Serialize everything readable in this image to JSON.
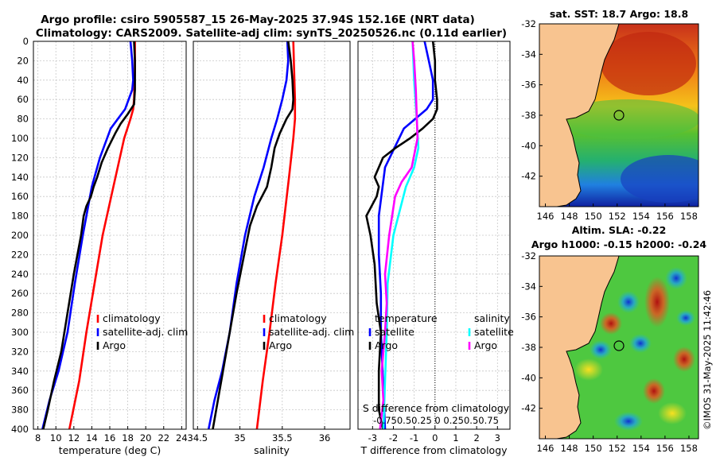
{
  "title_line1": "Argo profile: csiro 5905587_15 26-May-2025 37.94S 152.16E (NRT data)",
  "title_line2": "Climatology: CARS2009. Satellite-adj clim: synTS_20250526.nc (0.11d earlier)",
  "stamp": "©IMOS 31-May-2025 11:42:46",
  "colors": {
    "argo": "#000000",
    "climatology": "#ff0000",
    "satellite": "#0000ff",
    "sat_salinity": "#00ffff",
    "argo_salinity": "#ff00ff",
    "land": "#f8c490"
  },
  "chart_data": [
    {
      "type": "line",
      "name": "temperature",
      "xlabel": "temperature (deg C)",
      "xlim": [
        7.5,
        24.5
      ],
      "xticks": [
        8,
        10,
        12,
        14,
        16,
        18,
        20,
        22,
        24
      ],
      "ylim": [
        400,
        0
      ],
      "yticks": [
        0,
        20,
        40,
        60,
        80,
        100,
        120,
        140,
        160,
        180,
        200,
        220,
        240,
        260,
        280,
        300,
        320,
        340,
        360,
        380,
        400
      ],
      "legend": [
        "climatology",
        "satellite-adj. clim",
        "Argo"
      ],
      "series": [
        {
          "name": "climatology",
          "color": "#ff0000",
          "x": [
            18.8,
            18.8,
            18.7,
            18.6,
            18.3,
            17.6,
            16.4,
            15.2,
            14.3,
            13.4,
            12.6,
            11.5
          ],
          "y": [
            0,
            30,
            60,
            70,
            80,
            100,
            150,
            200,
            250,
            300,
            350,
            400
          ]
        },
        {
          "name": "satellite-adj. clim",
          "color": "#0000ff",
          "x": [
            18.3,
            18.5,
            18.6,
            18.5,
            17.7,
            16.1,
            14.9,
            14.0,
            13.0,
            12.1,
            11.3,
            10.3,
            9.3,
            8.5
          ],
          "y": [
            0,
            20,
            40,
            50,
            70,
            90,
            120,
            150,
            200,
            250,
            300,
            340,
            370,
            400
          ]
        },
        {
          "name": "Argo",
          "color": "#000000",
          "x": [
            18.7,
            18.8,
            18.8,
            18.7,
            18.0,
            17.2,
            16.6,
            15.8,
            15.1,
            14.6,
            14.2,
            13.9,
            13.4,
            13.1,
            12.8,
            12.0,
            11.3,
            10.6,
            9.8,
            9.1,
            8.6
          ],
          "y": [
            0,
            20,
            50,
            65,
            75,
            85,
            95,
            110,
            125,
            140,
            150,
            160,
            170,
            180,
            200,
            240,
            280,
            320,
            350,
            380,
            400
          ]
        }
      ]
    },
    {
      "type": "line",
      "name": "salinity",
      "xlabel": "salinity",
      "xlim": [
        34.45,
        36.3
      ],
      "xticks": [
        34.5,
        35,
        35.5,
        36
      ],
      "xtick_labels": [
        "34.5",
        "35",
        "35.5",
        "36"
      ],
      "ylim": [
        400,
        0
      ],
      "legend": [
        "climatology",
        "satellite-adj. clim",
        "Argo"
      ],
      "series": [
        {
          "name": "climatology",
          "color": "#ff0000",
          "x": [
            35.63,
            35.64,
            35.65,
            35.65,
            35.63,
            35.58,
            35.5,
            35.42,
            35.35,
            35.27,
            35.2
          ],
          "y": [
            0,
            30,
            60,
            80,
            100,
            140,
            200,
            250,
            300,
            350,
            400
          ]
        },
        {
          "name": "satellite-adj. clim",
          "color": "#0000ff",
          "x": [
            35.56,
            35.57,
            35.55,
            35.5,
            35.44,
            35.37,
            35.28,
            35.17,
            35.06,
            34.96,
            34.88,
            34.79,
            34.7,
            34.63
          ],
          "y": [
            0,
            20,
            40,
            60,
            80,
            100,
            130,
            160,
            200,
            250,
            300,
            340,
            370,
            400
          ]
        },
        {
          "name": "Argo",
          "color": "#000000",
          "x": [
            35.57,
            35.6,
            35.62,
            35.63,
            35.62,
            35.55,
            35.47,
            35.41,
            35.37,
            35.32,
            35.26,
            35.2,
            35.12,
            35.05,
            34.96,
            34.88,
            34.8,
            34.74,
            34.68
          ],
          "y": [
            0,
            20,
            40,
            60,
            70,
            80,
            95,
            110,
            130,
            150,
            160,
            170,
            190,
            220,
            260,
            300,
            340,
            370,
            400
          ]
        }
      ]
    },
    {
      "type": "line",
      "name": "difference",
      "xlabel": "T difference from climatology",
      "xlim": [
        -3.7,
        3.6
      ],
      "xticks": [
        -3,
        -2,
        -1,
        0,
        1,
        2,
        3
      ],
      "top_xlabel": "S difference from climatology",
      "top_xticks": [
        -0.75,
        -0.5,
        -0.25,
        0,
        0.25,
        0.5,
        0.75
      ],
      "top_tick_labels_text": "-0.750.50.25 0 0.250.50.75",
      "ylim": [
        400,
        0
      ],
      "legend_temperature": [
        "temperature",
        "satellite",
        "Argo"
      ],
      "legend_salinity": [
        "salinity",
        "satellite",
        "Argo"
      ],
      "series": [
        {
          "name": "T satellite",
          "color": "#0000ff",
          "x": [
            -0.5,
            -0.3,
            -0.1,
            -0.1,
            -0.4,
            -1.5,
            -2.4,
            -2.7,
            -2.7,
            -2.6,
            -2.6,
            -2.5,
            -2.4
          ],
          "y": [
            0,
            20,
            40,
            60,
            70,
            90,
            130,
            180,
            220,
            260,
            300,
            350,
            400
          ]
        },
        {
          "name": "T Argo",
          "color": "#000000",
          "x": [
            -0.1,
            0.0,
            0.0,
            0.1,
            0.1,
            -0.1,
            -0.6,
            -1.2,
            -1.9,
            -2.5,
            -2.9,
            -2.7,
            -2.8,
            -3.3,
            -3.1,
            -2.9,
            -2.8,
            -2.6,
            -2.7,
            -2.7,
            -2.5
          ],
          "y": [
            0,
            20,
            40,
            60,
            70,
            80,
            90,
            100,
            110,
            120,
            140,
            150,
            160,
            180,
            200,
            230,
            270,
            300,
            340,
            380,
            400
          ]
        },
        {
          "name": "S satellite",
          "color": "#00ffff",
          "x": [
            -0.27,
            -0.25,
            -0.22,
            -0.2,
            -0.25,
            -0.35,
            -0.5,
            -0.57,
            -0.58,
            -0.6,
            -0.62
          ],
          "y": [
            0,
            40,
            80,
            110,
            130,
            150,
            200,
            250,
            300,
            350,
            400
          ]
        },
        {
          "name": "S Argo",
          "color": "#ff00ff",
          "x": [
            -0.27,
            -0.25,
            -0.23,
            -0.21,
            -0.28,
            -0.4,
            -0.48,
            -0.55,
            -0.6,
            -0.58,
            -0.6,
            -0.64,
            -0.62,
            -0.66
          ],
          "y": [
            0,
            20,
            50,
            100,
            130,
            145,
            160,
            200,
            240,
            270,
            300,
            340,
            370,
            400
          ]
        }
      ]
    },
    {
      "type": "heatmap",
      "name": "sst_map",
      "title": "sat. SST: 18.7 Argo: 18.8",
      "xticks": [
        146,
        148,
        150,
        152,
        154,
        156,
        158
      ],
      "yticks": [
        -32,
        -34,
        -36,
        -38,
        -40,
        -42
      ],
      "xlim": [
        145.5,
        158.8
      ],
      "ylim": [
        -44,
        -32
      ],
      "float_position": {
        "lon": 152.16,
        "lat": -37.94
      }
    },
    {
      "type": "heatmap",
      "name": "sla_map",
      "title_line1": "Altim. SLA: -0.22",
      "title_line2": "Argo h1000: -0.15 h2000: -0.24",
      "xticks": [
        146,
        148,
        150,
        152,
        154,
        156,
        158
      ],
      "yticks": [
        -32,
        -34,
        -36,
        -38,
        -40,
        -42
      ],
      "xlim": [
        145.5,
        158.8
      ],
      "ylim": [
        -44,
        -32
      ],
      "float_position": {
        "lon": 152.16,
        "lat": -37.94
      }
    }
  ]
}
